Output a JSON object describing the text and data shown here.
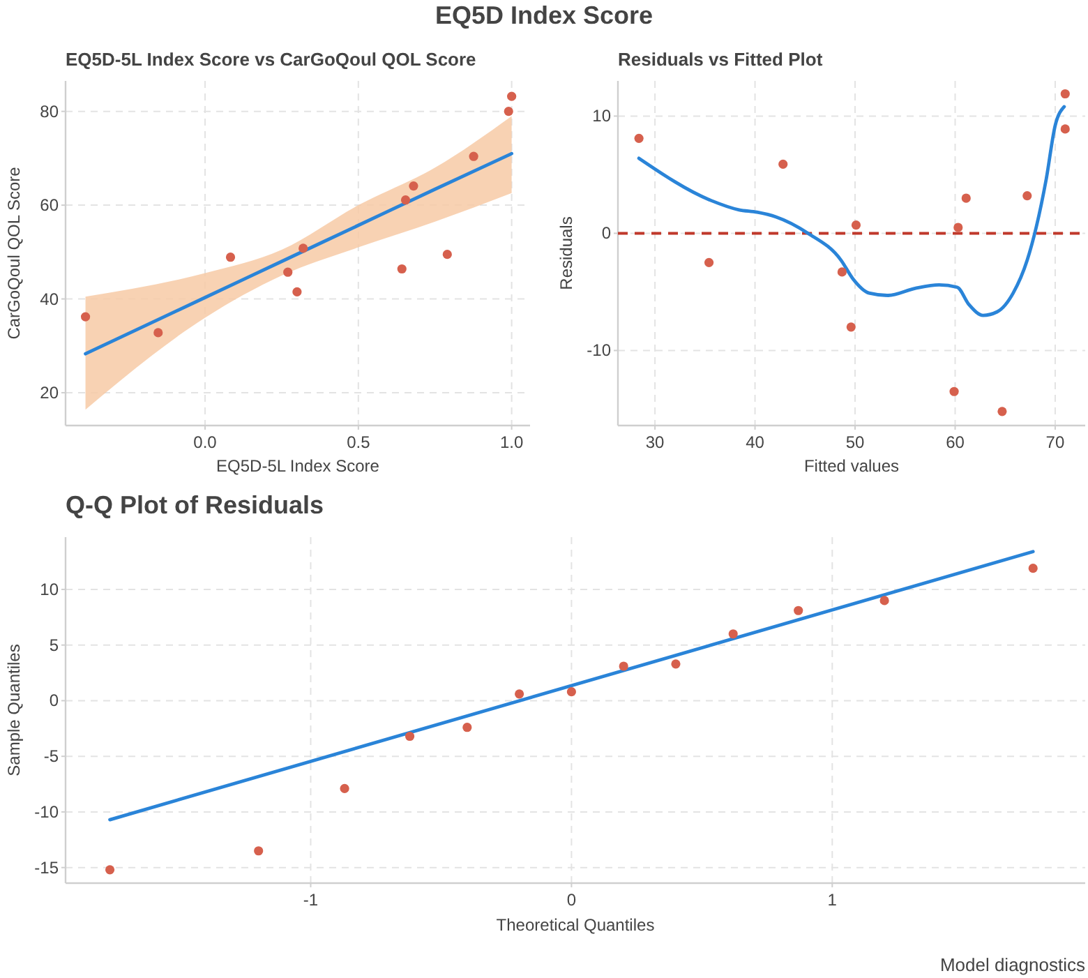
{
  "chart_data": [
    {
      "type": "scatter",
      "title": "EQ5D-5L Index Score vs CarGoQoul QOL Score",
      "xlabel": "EQ5D-5L Index Score",
      "ylabel": "CarGoQoul QOL Score",
      "annotations": [
        "EQ5D Index Score"
      ],
      "xlim": [
        -0.455,
        1.06
      ],
      "ylim": [
        13,
        86.5
      ],
      "xticks": [
        {
          "value": 0,
          "label": "0.0"
        },
        {
          "value": 0.5,
          "label": "0.5"
        },
        {
          "value": 1,
          "label": "1.0"
        }
      ],
      "yticks": [
        20,
        40,
        60,
        80
      ],
      "grid": true,
      "line_style": "solid",
      "series": [
        {
          "marker": "circle",
          "color": "#d6604d",
          "x": [
            -0.39,
            -0.153,
            0.083,
            0.27,
            0.3,
            0.32,
            0.642,
            0.654,
            0.68,
            0.79,
            0.876,
            0.99,
            1.0
          ],
          "values": [
            36.2,
            32.8,
            48.9,
            45.7,
            41.5,
            50.8,
            46.4,
            61.1,
            64.1,
            49.5,
            70.4,
            80.0,
            83.2
          ]
        },
        {
          "type": "line",
          "color": "#2a84d8",
          "x": [
            -0.39,
            0,
            0.25,
            0.5,
            0.75,
            1.0
          ],
          "values": [
            28.3,
            40.3,
            48,
            55.7,
            63.4,
            71
          ],
          "lower": [
            16.4,
            36,
            45,
            51,
            56.5,
            62.6
          ],
          "upper": [
            40.5,
            45.5,
            50.5,
            60,
            68,
            79
          ]
        }
      ]
    },
    {
      "type": "scatter",
      "title": "Residuals vs Fitted Plot",
      "xlabel": "Fitted values",
      "ylabel": "Residuals",
      "xlim": [
        26.3,
        73
      ],
      "ylim": [
        -16.4,
        13
      ],
      "xticks": [
        30,
        40,
        50,
        60,
        70
      ],
      "yticks": [
        -10,
        0,
        10
      ],
      "grid": true,
      "line_style": "solid",
      "ref_lines": [
        {
          "axis": "y",
          "value": 0,
          "color": "#c0392b",
          "line_style": "dashed"
        }
      ],
      "series": [
        {
          "marker": "circle",
          "color": "#d6604d",
          "x": [
            28.4,
            35.4,
            42.8,
            48.7,
            49.6,
            50.1,
            59.9,
            60.3,
            61.1,
            64.7,
            67.2,
            71.0,
            71.0
          ],
          "values": [
            8.1,
            -2.5,
            5.9,
            -3.3,
            -8.0,
            0.7,
            -13.5,
            0.5,
            3.0,
            -15.2,
            3.2,
            11.9,
            8.9
          ]
        },
        {
          "type": "line",
          "color": "#2a84d8",
          "x": [
            28.4,
            35.6,
            38.4,
            40.2,
            42.1,
            45.3,
            48.6,
            49.8,
            51.4,
            53.3,
            56.0,
            58.4,
            60.2,
            61.4,
            62.8,
            64.2,
            65.8,
            67.2,
            68.1,
            69.1,
            70.0,
            70.9
          ],
          "values": [
            6.4,
            2.8,
            2.0,
            1.8,
            1.4,
            0,
            -2.3,
            -3.9,
            -5.1,
            -5.3,
            -4.7,
            -4.4,
            -4.6,
            -6.1,
            -7.0,
            -6.7,
            -5.1,
            -2.3,
            0.5,
            4.6,
            9.2,
            10.8
          ]
        }
      ]
    },
    {
      "type": "scatter",
      "title": "Q-Q Plot of Residuals",
      "xlabel": "Theoretical Quantiles",
      "ylabel": "Sample Quantiles",
      "annotations": [
        "Model diagnostics"
      ],
      "xlim": [
        -1.94,
        1.97
      ],
      "ylim": [
        -16.4,
        14.7
      ],
      "xticks": [
        -1,
        0,
        1
      ],
      "yticks": [
        -15,
        -10,
        -5,
        0,
        5,
        10
      ],
      "grid": true,
      "line_style": "solid",
      "series": [
        {
          "marker": "circle",
          "color": "#d6604d",
          "x": [
            -1.77,
            -1.2,
            -0.87,
            -0.62,
            -0.4,
            -0.2,
            0,
            0.2,
            0.4,
            0.62,
            0.87,
            1.2,
            1.77
          ],
          "values": [
            -15.2,
            -13.5,
            -7.9,
            -3.2,
            -2.4,
            0.6,
            0.8,
            3.1,
            3.3,
            6.0,
            8.1,
            9.0,
            11.9
          ]
        },
        {
          "type": "line",
          "color": "#2a84d8",
          "x": [
            -1.77,
            1.77
          ],
          "values": [
            -10.7,
            13.4
          ]
        }
      ]
    }
  ]
}
